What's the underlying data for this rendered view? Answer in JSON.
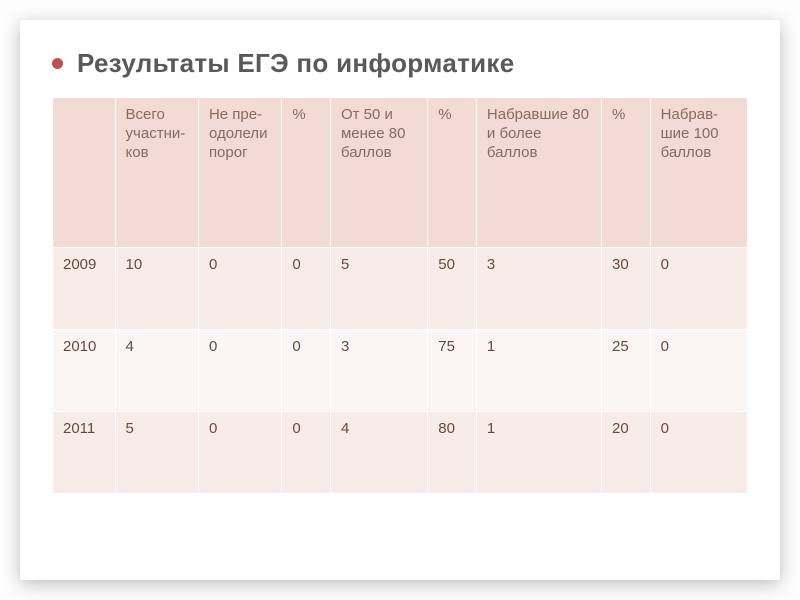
{
  "title": "Результаты  ЕГЭ по информатике",
  "bullet_color": "#c0504d",
  "header_bg": "#f1dbd4",
  "row_bg_even": "#f8ece8",
  "row_bg_odd": "#fbf5f3",
  "header_text_color": "#8a6a5e",
  "cell_text_color": "#6a4a3e",
  "columns": [
    "",
    "Всего участни-ков",
    "Не пре-одолели порог",
    "%",
    "От 50 и менее 80 баллов",
    "%",
    "Набравшие 80 и более баллов",
    "%",
    "Набрав-шие 100 баллов"
  ],
  "rows": [
    [
      "2009",
      "10",
      "0",
      "0",
      "5",
      "50",
      "3",
      "30",
      "0"
    ],
    [
      "2010",
      "4",
      "0",
      "0",
      "3",
      "75",
      "1",
      "25",
      "0"
    ],
    [
      "2011",
      "5",
      "0",
      "0",
      "4",
      "80",
      "1",
      "20",
      "0"
    ]
  ],
  "col_widths": [
    "9%",
    "12%",
    "12%",
    "7%",
    "14%",
    "7%",
    "18%",
    "7%",
    "14%"
  ]
}
